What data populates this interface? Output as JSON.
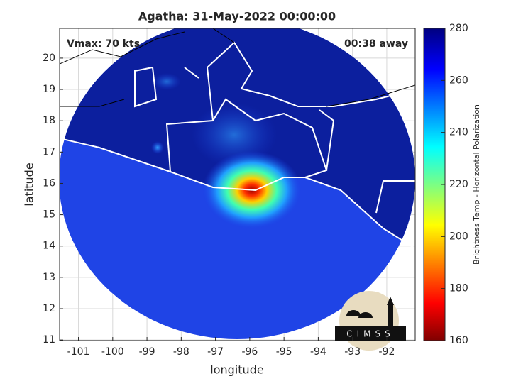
{
  "chart_data": {
    "type": "map",
    "title": "Agatha: 31-May-2022 00:00:00",
    "annotations": [
      "Vmax: 70 kts",
      "00:38 away"
    ],
    "x_label": "longitude",
    "y_label": "latitude",
    "xlim": [
      -101.55,
      -91.17
    ],
    "xticks": [
      -101,
      -100,
      -99,
      -98,
      -97,
      -96,
      -95,
      -94,
      -93,
      -92
    ],
    "ylim": [
      10.98,
      20.95
    ],
    "yticks": [
      11,
      12,
      13,
      14,
      15,
      16,
      17,
      18,
      19,
      20
    ],
    "grid": true,
    "colorbar": {
      "label": "Brightness Temp - Horizontal Polarization",
      "clim": [
        160,
        280
      ],
      "ticks": [
        160,
        180,
        200,
        220,
        240,
        260,
        280
      ]
    },
    "logo": "CIMSS"
  }
}
